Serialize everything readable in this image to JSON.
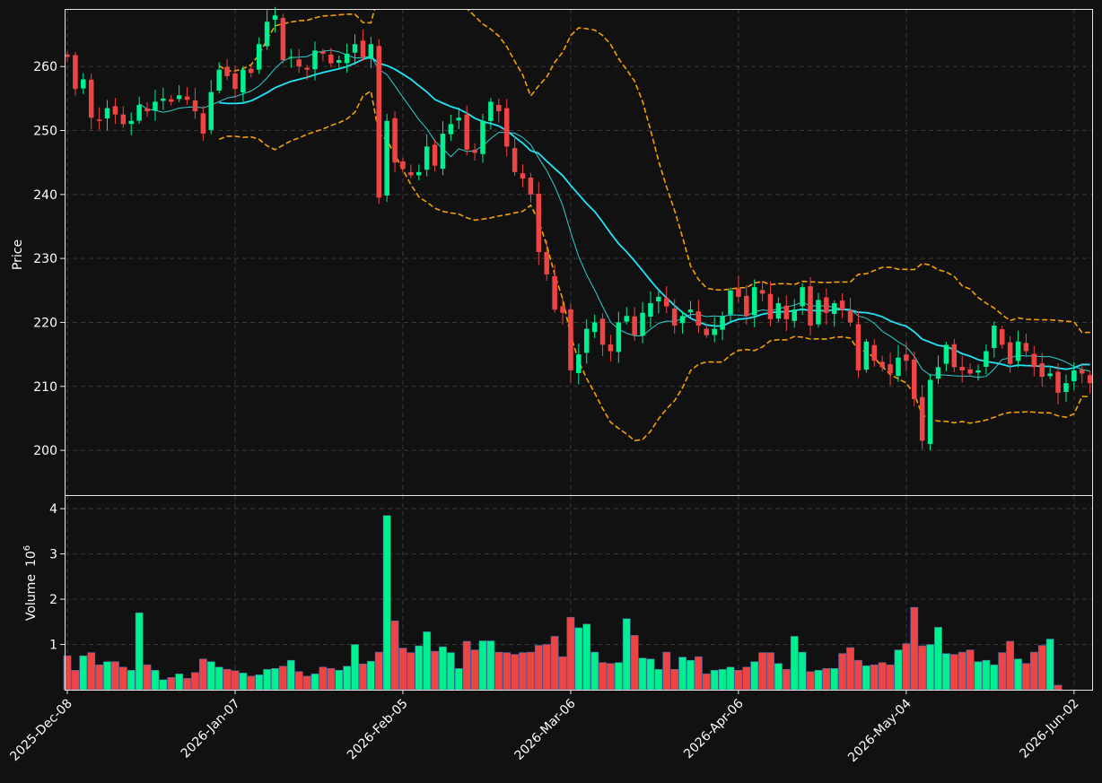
{
  "chart_data": {
    "type": "candlestick",
    "price_panel": {
      "ylabel": "Price",
      "ylim": [
        193,
        269
      ],
      "yticks": [
        200,
        210,
        220,
        230,
        240,
        250,
        260
      ],
      "grid": true
    },
    "volume_panel": {
      "ylabel": "Volume",
      "yexponent": "6",
      "ylim": [
        0,
        4.3
      ],
      "yticks": [
        1,
        2,
        3,
        4
      ],
      "grid": true
    },
    "x_tick_labels": [
      {
        "index": 0,
        "label": "2025-Dec-08"
      },
      {
        "index": 21,
        "label": "2026-Jan-07"
      },
      {
        "index": 42,
        "label": "2026-Feb-05"
      },
      {
        "index": 63,
        "label": "2026-Mar-06"
      },
      {
        "index": 84,
        "label": "2026-Apr-06"
      },
      {
        "index": 105,
        "label": "2026-May-04"
      },
      {
        "index": 126,
        "label": "2026-Jun-02"
      }
    ],
    "colors": {
      "background": "#111111",
      "up": "#00f090",
      "down": "#ef4444",
      "sma_slow": "#22e4f6",
      "sma_fast": "#2ecfd0",
      "bollinger": "#f5a000",
      "volume_edge": "#4a6aa8"
    },
    "series": [
      {
        "name": "close",
        "values": [
          261.5,
          256.5,
          258.0,
          252.0,
          251.5,
          253.5,
          252.5,
          251.0,
          251.5,
          254.0,
          253.0,
          254.5,
          255.0,
          254.5,
          255.5,
          254.8,
          253.0,
          249.5,
          256.0,
          259.5,
          258.5,
          256.5,
          259.5,
          259.0,
          263.5,
          267.0,
          268.0,
          261.0,
          261.5,
          260.0,
          259.5,
          262.5,
          262.0,
          260.5,
          261.0,
          262.0,
          263.5,
          261.5,
          263.5,
          239.5,
          251.5,
          245.0,
          244.0,
          243.0,
          243.5,
          247.5,
          244.5,
          249.5,
          251.0,
          252.0,
          247.0,
          246.5,
          251.5,
          254.5,
          253.0,
          247.5,
          243.5,
          242.5,
          240.0,
          231.0,
          227.5,
          222.0,
          221.5,
          212.5,
          215.0,
          219.0,
          220.0,
          216.5,
          215.5,
          220.0,
          221.0,
          218.0,
          221.5,
          223.0,
          224.0,
          222.5,
          219.5,
          221.0,
          222.0,
          219.5,
          218.0,
          219.0,
          221.0,
          225.0,
          224.0,
          221.0,
          225.5,
          224.5,
          220.5,
          223.0,
          220.5,
          222.0,
          225.5,
          219.5,
          223.5,
          221.5,
          223.0,
          222.0,
          220.0,
          212.5,
          217.0,
          214.0,
          213.0,
          212.0,
          214.5,
          214.0,
          208.0,
          201.5,
          211.0,
          213.0,
          216.5,
          213.0,
          212.5,
          212.0,
          212.5,
          215.5,
          219.5,
          216.5,
          213.5,
          217.0,
          215.5,
          213.0,
          211.5,
          212.0,
          209.0,
          210.5,
          212.5,
          212.0,
          210.5
        ]
      },
      {
        "name": "volume",
        "values": [
          0.75,
          0.43,
          0.75,
          0.82,
          0.55,
          0.62,
          0.62,
          0.5,
          0.43,
          1.7,
          0.55,
          0.43,
          0.22,
          0.27,
          0.35,
          0.25,
          0.38,
          0.68,
          0.62,
          0.5,
          0.45,
          0.42,
          0.37,
          0.3,
          0.33,
          0.45,
          0.47,
          0.52,
          0.65,
          0.4,
          0.3,
          0.35,
          0.5,
          0.47,
          0.43,
          0.52,
          1.0,
          0.57,
          0.63,
          0.83,
          3.85,
          1.52,
          0.92,
          0.82,
          0.97,
          1.28,
          0.85,
          0.95,
          0.82,
          0.47,
          1.07,
          0.88,
          1.08,
          1.08,
          0.83,
          0.82,
          0.78,
          0.82,
          0.83,
          0.98,
          1.0,
          1.18,
          0.73,
          1.6,
          1.37,
          1.45,
          0.83,
          0.6,
          0.58,
          0.6,
          1.57,
          1.2,
          0.7,
          0.68,
          0.45,
          0.83,
          0.45,
          0.72,
          0.65,
          0.73,
          0.35,
          0.43,
          0.45,
          0.5,
          0.43,
          0.5,
          0.62,
          0.82,
          0.82,
          0.58,
          0.45,
          1.18,
          0.83,
          0.4,
          0.43,
          0.47,
          0.47,
          0.8,
          0.93,
          0.65,
          0.53,
          0.55,
          0.6,
          0.55,
          0.88,
          1.02,
          1.82,
          0.97,
          1.0,
          1.38,
          0.8,
          0.78,
          0.83,
          0.88,
          0.62,
          0.65,
          0.55,
          0.82,
          1.07,
          0.68,
          0.58,
          0.83,
          0.98,
          1.12,
          0.1
        ]
      }
    ]
  }
}
